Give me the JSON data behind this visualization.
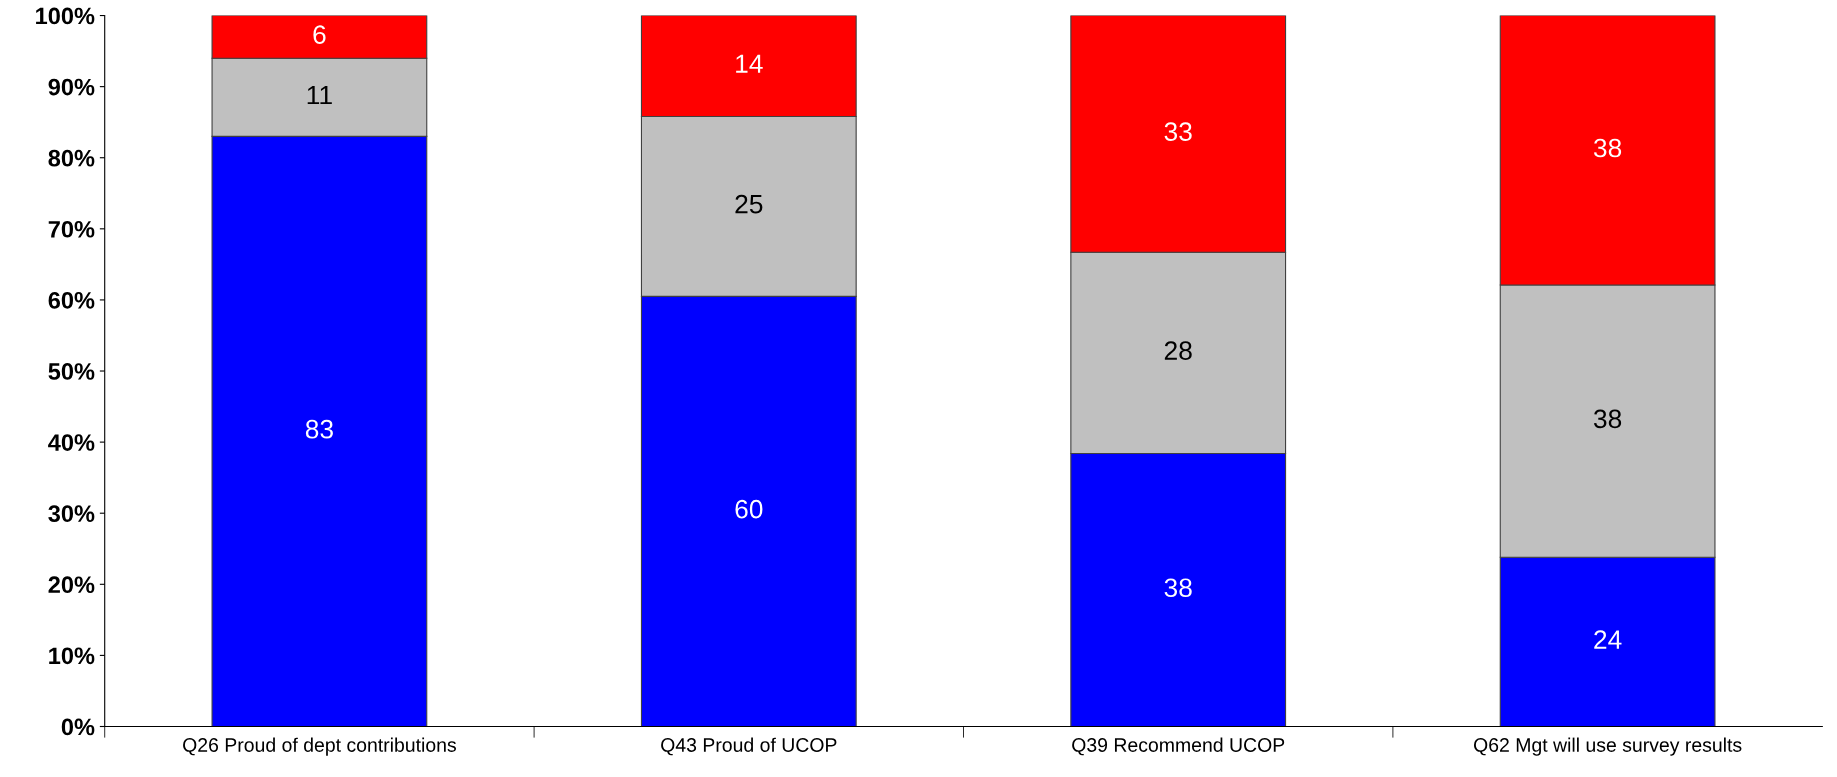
{
  "chart_data": {
    "type": "bar",
    "stacked": true,
    "categories": [
      "Q26 Proud of dept contributions",
      "Q43 Proud of UCOP",
      "Q39 Recommend UCOP",
      "Q62 Mgt will use survey results"
    ],
    "series": [
      {
        "color": "#0000ff",
        "values": [
          83.0,
          60.5,
          38.4,
          23.8
        ],
        "value_labels": [
          "83",
          "60",
          "38",
          "24"
        ]
      },
      {
        "color": "#c0c0c0",
        "values": [
          11.0,
          25.3,
          28.3,
          38.3
        ],
        "value_labels": [
          "11",
          "25",
          "28",
          "38"
        ]
      },
      {
        "color": "#ff0000",
        "values": [
          6.0,
          14.2,
          33.3,
          37.9
        ],
        "value_labels": [
          "6",
          "14",
          "33",
          "38"
        ]
      }
    ],
    "ylim": [
      0,
      100
    ],
    "yticks": [
      {
        "value": 0,
        "label": "0%"
      },
      {
        "value": 10,
        "label": "10%"
      },
      {
        "value": 20,
        "label": "20%"
      },
      {
        "value": 30,
        "label": "30%"
      },
      {
        "value": 40,
        "label": "40%"
      },
      {
        "value": 50,
        "label": "50%"
      },
      {
        "value": 60,
        "label": "60%"
      },
      {
        "value": 70,
        "label": "70%"
      },
      {
        "value": 80,
        "label": "80%"
      },
      {
        "value": 90,
        "label": "90%"
      },
      {
        "value": 100,
        "label": "100%"
      }
    ],
    "grid": false
  }
}
